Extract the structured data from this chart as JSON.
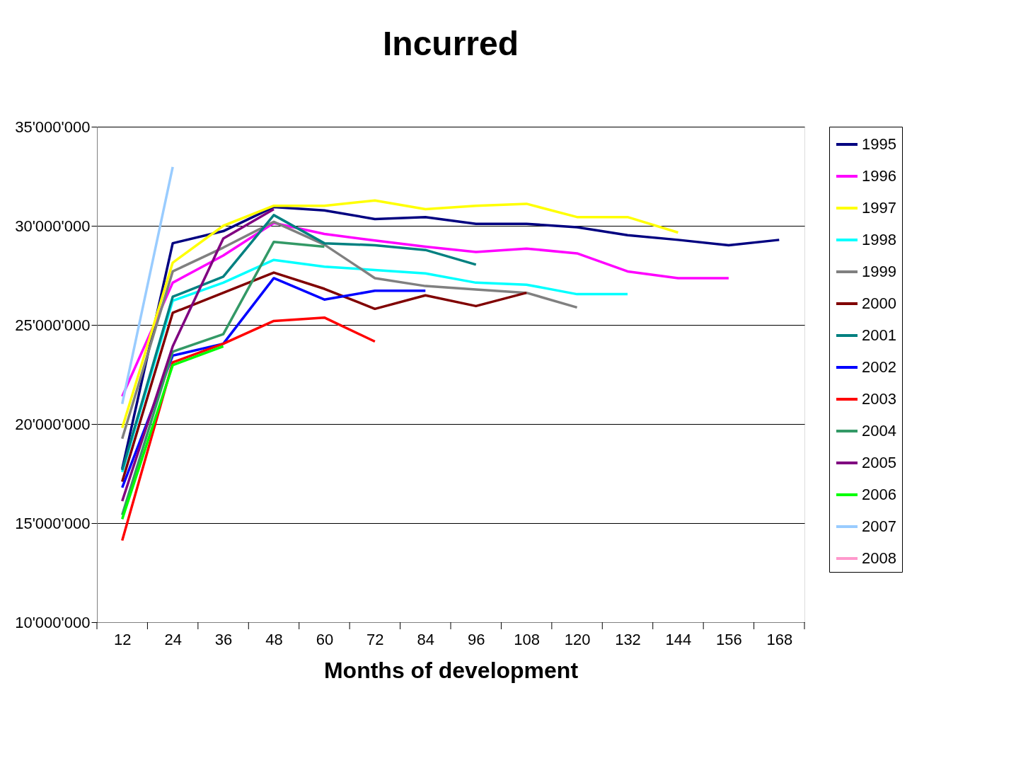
{
  "chart_data": {
    "type": "line",
    "title": "Incurred",
    "xlabel": "Months of development",
    "categories": [
      "12",
      "24",
      "36",
      "48",
      "60",
      "72",
      "84",
      "96",
      "108",
      "120",
      "132",
      "144",
      "156",
      "168"
    ],
    "ylim": [
      10000000,
      35000000
    ],
    "yticks": [
      {
        "value": 10000000,
        "label": "10'000'000"
      },
      {
        "value": 15000000,
        "label": "15'000'000"
      },
      {
        "value": 20000000,
        "label": "20'000'000"
      },
      {
        "value": 25000000,
        "label": "25'000'000"
      },
      {
        "value": 30000000,
        "label": "30'000'000"
      },
      {
        "value": 35000000,
        "label": "35'000'000"
      }
    ],
    "grid": "y",
    "legend": "right",
    "marker": "none",
    "line_style": "solid",
    "series": [
      {
        "name": "1995",
        "color": "#000080",
        "values": [
          17740000,
          29120000,
          29730000,
          30950000,
          30780000,
          30340000,
          30440000,
          30100000,
          30100000,
          29930000,
          29530000,
          29290000,
          29020000,
          29290000
        ]
      },
      {
        "name": "1996",
        "color": "#ff00ff",
        "values": [
          21390000,
          27130000,
          28500000,
          30140000,
          29590000,
          29260000,
          28950000,
          28680000,
          28850000,
          28610000,
          27700000,
          27360000,
          27360000,
          null
        ]
      },
      {
        "name": "1997",
        "color": "#ffff00",
        "values": [
          19800000,
          28140000,
          30000000,
          31010000,
          31010000,
          31280000,
          30840000,
          31010000,
          31110000,
          30440000,
          30440000,
          29660000,
          null,
          null
        ]
      },
      {
        "name": "1998",
        "color": "#00ffff",
        "values": [
          17570000,
          26220000,
          27130000,
          28280000,
          27940000,
          27770000,
          27600000,
          27130000,
          27030000,
          26550000,
          26550000,
          null,
          null,
          null
        ]
      },
      {
        "name": "1999",
        "color": "#808080",
        "values": [
          19260000,
          27700000,
          28900000,
          30200000,
          29050000,
          27360000,
          26960000,
          26790000,
          26620000,
          25880000,
          null,
          null,
          null,
          null
        ]
      },
      {
        "name": "2000",
        "color": "#800000",
        "values": [
          17090000,
          25610000,
          26620000,
          27640000,
          26820000,
          25810000,
          26490000,
          25950000,
          26620000,
          null,
          null,
          null,
          null,
          null
        ]
      },
      {
        "name": "2001",
        "color": "#008080",
        "values": [
          17670000,
          26420000,
          27430000,
          30540000,
          29120000,
          29020000,
          28780000,
          28040000,
          null,
          null,
          null,
          null,
          null,
          null
        ]
      },
      {
        "name": "2002",
        "color": "#0000ff",
        "values": [
          16790000,
          23450000,
          24050000,
          27360000,
          26280000,
          26720000,
          26720000,
          null,
          null,
          null,
          null,
          null,
          null,
          null
        ]
      },
      {
        "name": "2003",
        "color": "#ff0000",
        "values": [
          14120000,
          23110000,
          24050000,
          25200000,
          25370000,
          24160000,
          null,
          null,
          null,
          null,
          null,
          null,
          null,
          null
        ]
      },
      {
        "name": "2004",
        "color": "#339966",
        "values": [
          15410000,
          23650000,
          24530000,
          29190000,
          28950000,
          null,
          null,
          null,
          null,
          null,
          null,
          null,
          null,
          null
        ]
      },
      {
        "name": "2005",
        "color": "#800080",
        "values": [
          16110000,
          23920000,
          29360000,
          30840000,
          null,
          null,
          null,
          null,
          null,
          null,
          null,
          null,
          null,
          null
        ]
      },
      {
        "name": "2006",
        "color": "#00ff00",
        "values": [
          15200000,
          22970000,
          23920000,
          null,
          null,
          null,
          null,
          null,
          null,
          null,
          null,
          null,
          null,
          null
        ]
      },
      {
        "name": "2007",
        "color": "#99ccff",
        "values": [
          21010000,
          32970000,
          null,
          null,
          null,
          null,
          null,
          null,
          null,
          null,
          null,
          null,
          null,
          null
        ]
      },
      {
        "name": "2008",
        "color": "#ff99cc",
        "values": [
          null,
          null,
          null,
          null,
          null,
          null,
          null,
          null,
          null,
          null,
          null,
          null,
          null,
          null
        ]
      }
    ]
  }
}
